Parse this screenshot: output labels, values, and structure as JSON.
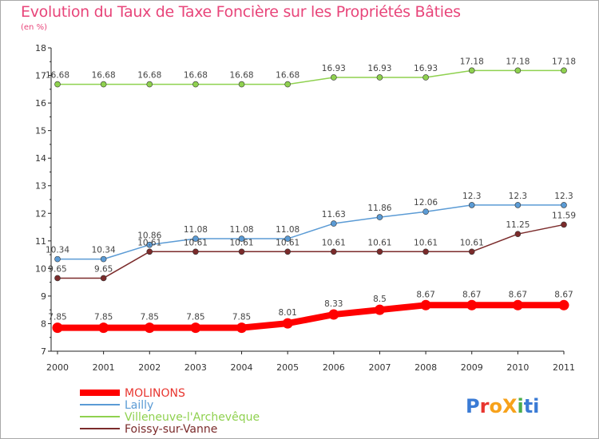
{
  "chart_data": {
    "type": "line",
    "title": "Evolution du Taux de Taxe Foncière sur les Propriétés Bâties",
    "ylabel": "(en %)",
    "xlabel": "",
    "x": [
      "2000",
      "2001",
      "2002",
      "2003",
      "2004",
      "2005",
      "2006",
      "2007",
      "2008",
      "2009",
      "2010",
      "2011"
    ],
    "ylim": [
      7,
      18
    ],
    "yticks": [
      7,
      8,
      9,
      10,
      11,
      12,
      13,
      14,
      15,
      16,
      17,
      18
    ],
    "grid": false,
    "legend_position": "bottom-left",
    "series": [
      {
        "name": "MOLINONS",
        "color": "#ff0000",
        "values": [
          7.85,
          7.85,
          7.85,
          7.85,
          7.85,
          8.01,
          8.33,
          8.5,
          8.67,
          8.67,
          8.67,
          8.67
        ],
        "labels": [
          "7.85",
          "7.85",
          "7.85",
          "7.85",
          "7.85",
          "8.01",
          "8.33",
          "8.5",
          "8.67",
          "8.67",
          "8.67",
          "8.67"
        ]
      },
      {
        "name": "Lailly",
        "color": "#5b9bd5",
        "values": [
          10.34,
          10.34,
          10.86,
          11.08,
          11.08,
          11.08,
          11.63,
          11.86,
          12.06,
          12.3,
          12.3,
          12.3
        ],
        "labels": [
          "10.34",
          "10.34",
          "10.86",
          "11.08",
          "11.08",
          "11.08",
          "11.63",
          "11.86",
          "12.06",
          "12.3",
          "12.3",
          "12.3"
        ]
      },
      {
        "name": "Villeneuve-l'Archevêque",
        "color": "#8fd14f",
        "values": [
          16.68,
          16.68,
          16.68,
          16.68,
          16.68,
          16.68,
          16.93,
          16.93,
          16.93,
          17.18,
          17.18,
          17.18
        ],
        "labels": [
          "16.68",
          "16.68",
          "16.68",
          "16.68",
          "16.68",
          "16.68",
          "16.93",
          "16.93",
          "16.93",
          "17.18",
          "17.18",
          "17.18"
        ]
      },
      {
        "name": "Foissy-sur-Vanne",
        "color": "#7b2b2b",
        "values": [
          9.65,
          9.65,
          10.61,
          10.61,
          10.61,
          10.61,
          10.61,
          10.61,
          10.61,
          10.61,
          11.25,
          11.59
        ],
        "labels": [
          "9.65",
          "9.65",
          "10.61",
          "10.61",
          "10.61",
          "10.61",
          "10.61",
          "10.61",
          "10.61",
          "10.61",
          "11.25",
          "11.59"
        ]
      }
    ]
  },
  "logo": {
    "text": "ProXiti",
    "colors": [
      "#3a7bd5",
      "#e8352f",
      "#f7a21b",
      "#4cae4c"
    ]
  }
}
